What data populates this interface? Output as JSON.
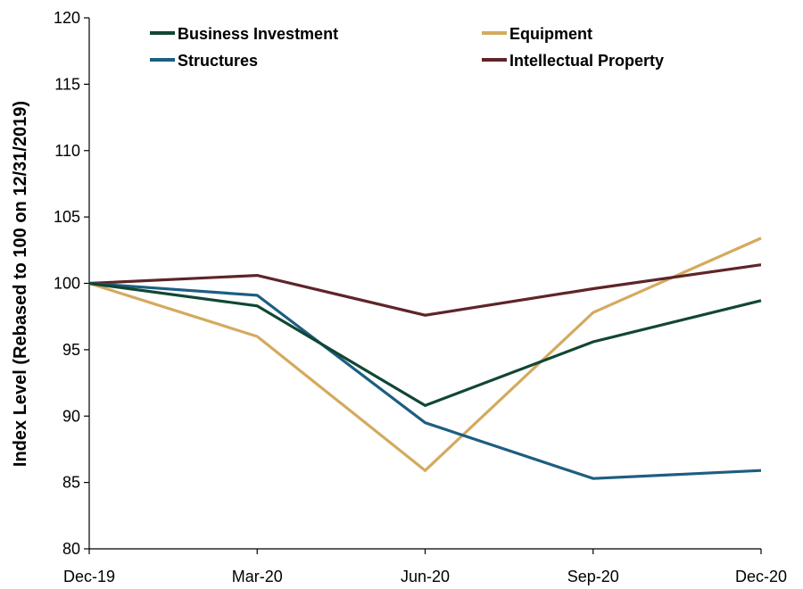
{
  "chart_data": {
    "type": "line",
    "title": "",
    "xlabel": "",
    "ylabel": "Index Level (Rebased to 100 on 12/31/2019)",
    "categories": [
      "Dec-19",
      "Mar-20",
      "Jun-20",
      "Sep-20",
      "Dec-20"
    ],
    "ylim": [
      80,
      120
    ],
    "yticks": [
      80,
      85,
      90,
      95,
      100,
      105,
      110,
      115,
      120
    ],
    "grid": false,
    "legend_position": "top",
    "series": [
      {
        "name": "Business Investment",
        "color": "#114734",
        "values": [
          100,
          98.3,
          90.8,
          95.6,
          98.7
        ]
      },
      {
        "name": "Equipment",
        "color": "#D4AA5E",
        "values": [
          100,
          96.0,
          85.9,
          97.8,
          103.4
        ]
      },
      {
        "name": "Structures",
        "color": "#1D5E82",
        "values": [
          100,
          99.1,
          89.5,
          85.3,
          85.9
        ]
      },
      {
        "name": "Intellectual Property",
        "color": "#5E2528",
        "values": [
          100,
          100.6,
          97.6,
          99.6,
          101.4
        ]
      }
    ]
  }
}
